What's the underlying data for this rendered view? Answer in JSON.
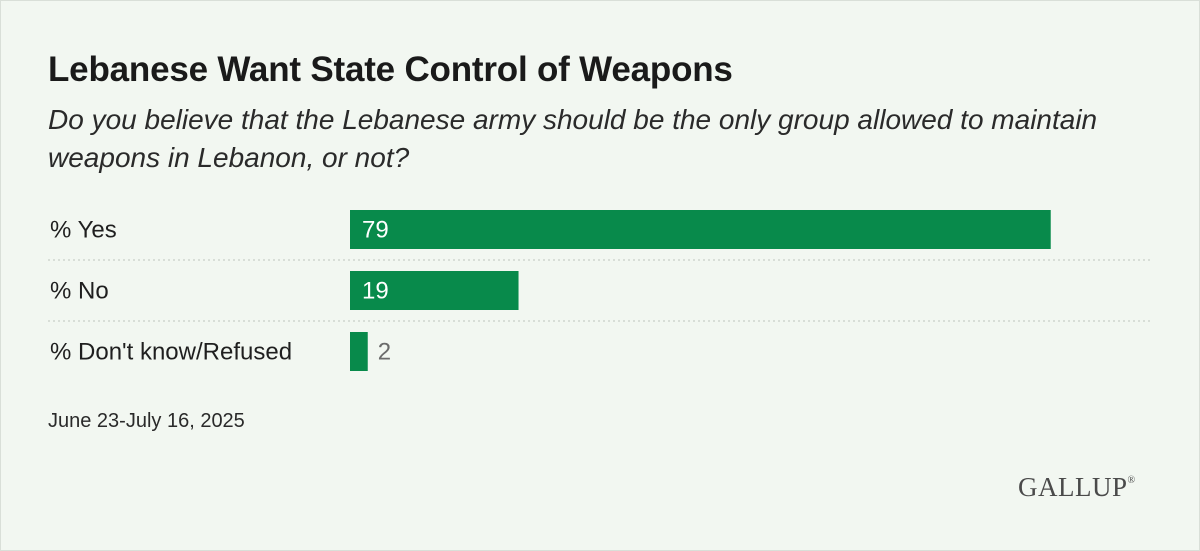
{
  "title": "Lebanese Want State Control of Weapons",
  "subtitle": "Do you believe that the Lebanese army should be the only group allowed to maintain weapons in Lebanon, or not?",
  "footnote": "June 23-July 16, 2025",
  "logo": "GALLUP",
  "colors": {
    "bar": "#088a4b",
    "background": "#f2f7f1",
    "divider": "#c9cfc8"
  },
  "chart_data": {
    "type": "bar",
    "orientation": "horizontal",
    "title": "Lebanese Want State Control of Weapons",
    "categories": [
      "% Yes",
      "% No",
      "% Don't know/Refused"
    ],
    "values": [
      79,
      19,
      2
    ],
    "xlim": [
      0,
      100
    ],
    "xlabel": "",
    "ylabel": "",
    "grid": false
  }
}
